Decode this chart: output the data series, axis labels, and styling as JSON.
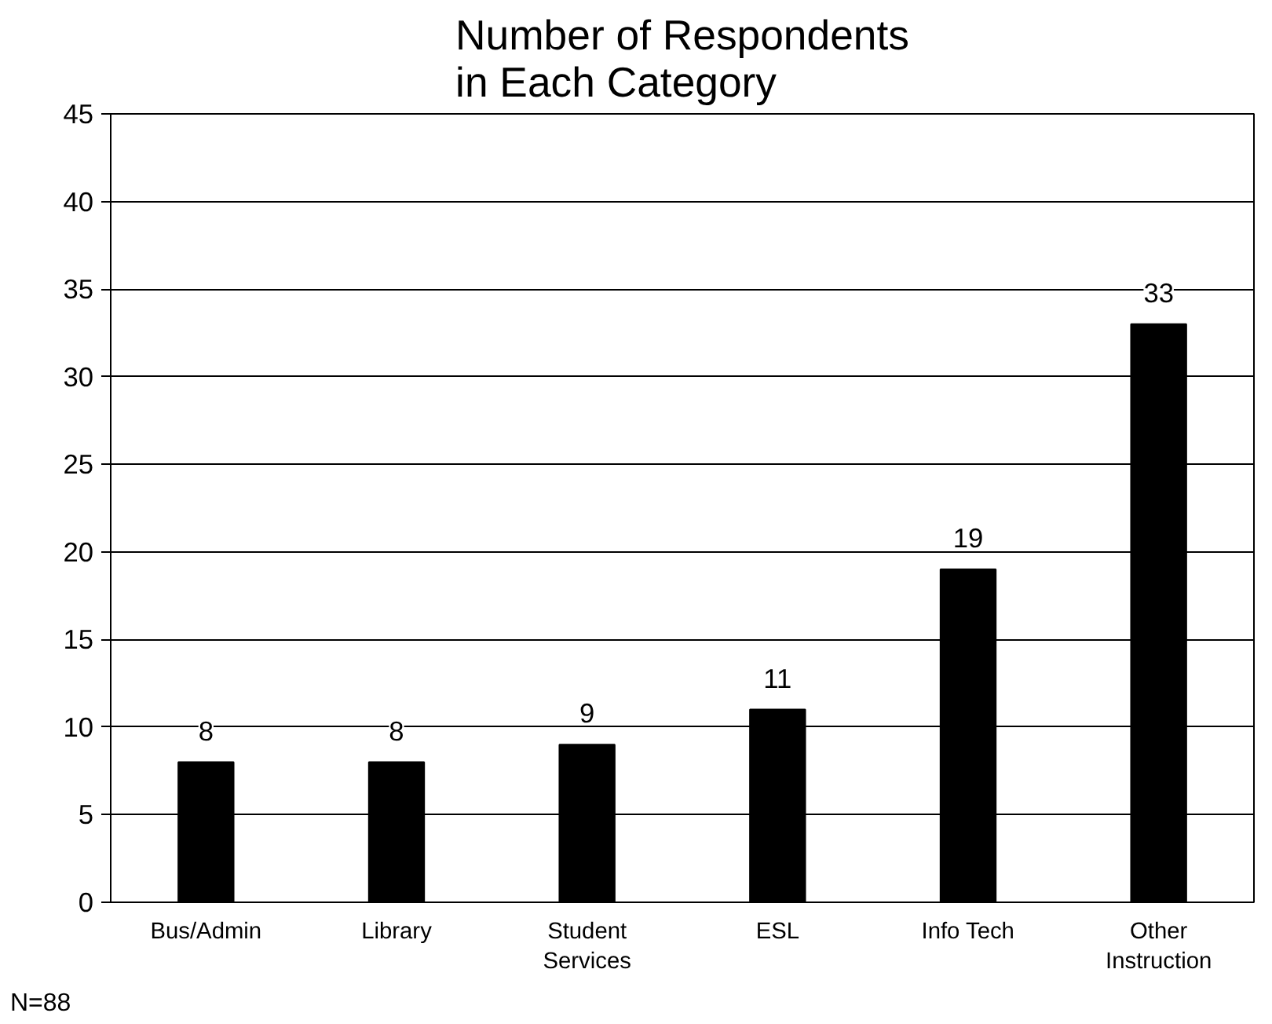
{
  "chart_data": {
    "type": "bar",
    "title": "Number of Respondents\nin Each Category",
    "categories": [
      "Bus/Admin",
      "Library",
      "Student\nServices",
      "ESL",
      "Info Tech",
      "Other\nInstruction"
    ],
    "values": [
      8,
      8,
      9,
      11,
      19,
      33
    ],
    "color": "#000000",
    "ylim": [
      0,
      45
    ],
    "yticks": [
      0,
      5,
      10,
      15,
      20,
      25,
      30,
      35,
      40,
      45
    ],
    "grid": "y",
    "data_labels": true,
    "annotations": [
      "N=88"
    ]
  }
}
